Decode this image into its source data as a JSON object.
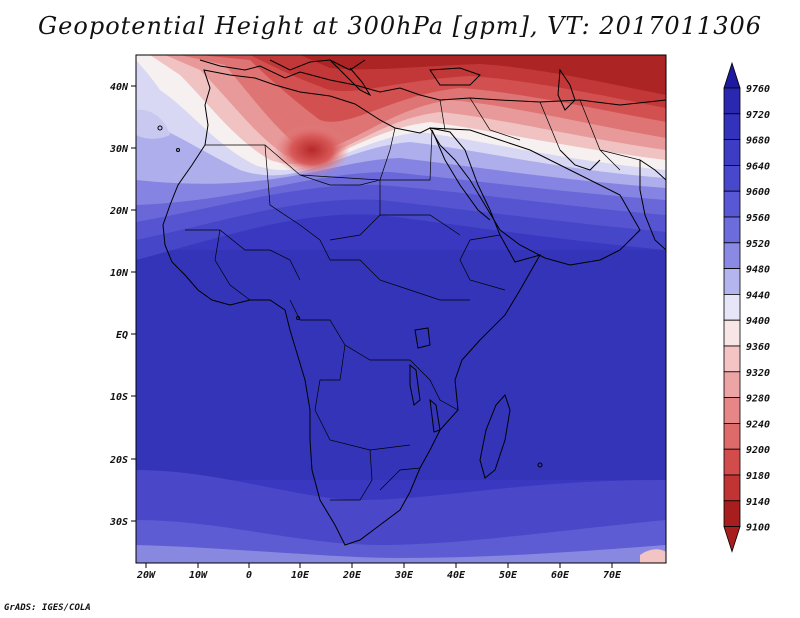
{
  "title": "Geopotential Height at 300hPa [gpm], VT: 2017011306",
  "credit": "GrADS: IGES/COLA",
  "map": {
    "lat_labels": [
      "40N",
      "30N",
      "20N",
      "10N",
      "EQ",
      "10S",
      "20S",
      "30S"
    ],
    "lon_labels": [
      "20W",
      "10W",
      "0",
      "10E",
      "20E",
      "30E",
      "40E",
      "50E",
      "60E",
      "70E"
    ]
  },
  "colorbar": {
    "levels": [
      "9760",
      "9720",
      "9680",
      "9640",
      "9600",
      "9560",
      "9520",
      "9480",
      "9440",
      "9400",
      "9360",
      "9320",
      "9280",
      "9240",
      "9200",
      "9180",
      "9140",
      "9100"
    ],
    "colors": [
      "#1e1aa0",
      "#2a28b0",
      "#3232bc",
      "#3c3cc4",
      "#4848cc",
      "#5858d4",
      "#6c6cdc",
      "#8a8ae4",
      "#b4b4ee",
      "#e6e6f8",
      "#f8e6e6",
      "#f4c4c4",
      "#eca4a4",
      "#e68686",
      "#de6a6a",
      "#d24c4c",
      "#c23434",
      "#a81e1e"
    ]
  }
}
